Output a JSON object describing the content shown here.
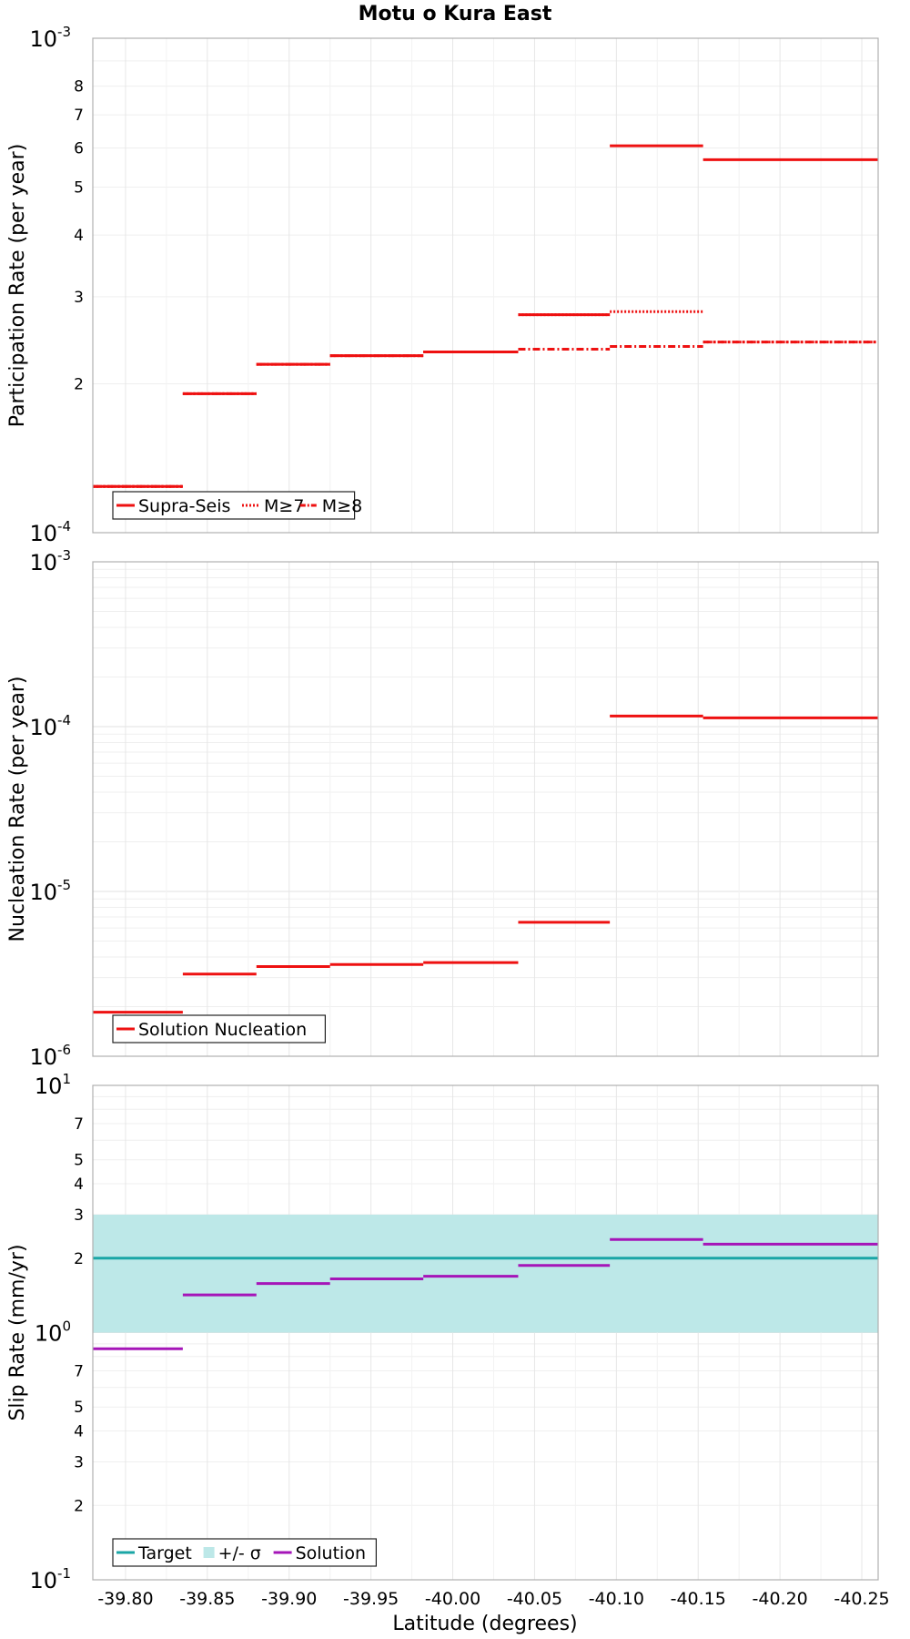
{
  "title": "Motu o Kura East",
  "xlabel": "Latitude (degrees)",
  "x_ticks": [
    "-39.80",
    "-39.85",
    "-39.90",
    "-39.95",
    "-40.00",
    "-40.05",
    "-40.10",
    "-40.15",
    "-40.20",
    "-40.25"
  ],
  "colors": {
    "red": "#ee1111",
    "teal": "#1aa6a6",
    "teal_band": "#bde8e8",
    "purple": "#a515b8"
  },
  "chart_data": [
    {
      "type": "line",
      "step": true,
      "ylabel": "Participation Rate (per year)",
      "yscale": "log",
      "ylim": [
        0.0001,
        0.001
      ],
      "xlim": [
        -39.78,
        -40.26
      ],
      "y_ticks": [
        {
          "value": 0.001,
          "mant": "10",
          "exp": "-3"
        },
        {
          "value": 0.0008,
          "mant": "8"
        },
        {
          "value": 0.0007,
          "mant": "7"
        },
        {
          "value": 0.0006,
          "mant": "6"
        },
        {
          "value": 0.0005,
          "mant": "5"
        },
        {
          "value": 0.0004,
          "mant": "4"
        },
        {
          "value": 0.0003,
          "mant": "3"
        },
        {
          "value": 0.0002,
          "mant": "2"
        },
        {
          "value": 0.0001,
          "mant": "10",
          "exp": "-4"
        }
      ],
      "legend": {
        "placement": "bottom-left",
        "entries": [
          {
            "label": "Supra-Seis",
            "style": "solid"
          },
          {
            "label": "M≥7",
            "style": "dotted"
          },
          {
            "label": "M≥8",
            "style": "dashdot"
          }
        ]
      },
      "series": [
        {
          "name": "Supra-Seis",
          "style": "solid",
          "color": "red",
          "segments": [
            [
              -39.78,
              -39.835,
              0.000124
            ],
            [
              -39.835,
              -39.88,
              0.000191
            ],
            [
              -39.88,
              -39.925,
              0.000219
            ],
            [
              -39.925,
              -39.982,
              0.000228
            ],
            [
              -39.982,
              -40.04,
              0.000232
            ],
            [
              -40.04,
              -40.096,
              0.000276
            ],
            [
              -40.096,
              -40.153,
              0.000606
            ],
            [
              -40.153,
              -40.26,
              0.000568
            ]
          ]
        },
        {
          "name": "M≥7",
          "style": "dotted",
          "color": "red",
          "segments": [
            [
              -39.78,
              -39.835,
              0.000124
            ],
            [
              -39.835,
              -39.88,
              0.000191
            ],
            [
              -39.88,
              -39.925,
              0.000219
            ],
            [
              -39.925,
              -39.982,
              0.000228
            ],
            [
              -39.982,
              -40.04,
              0.000232
            ],
            [
              -40.04,
              -40.096,
              0.000276
            ],
            [
              -40.096,
              -40.153,
              0.00028
            ],
            [
              -40.153,
              -40.26,
              0.000243
            ]
          ]
        },
        {
          "name": "M≥8",
          "style": "dashdot",
          "color": "red",
          "segments": [
            [
              -39.78,
              -39.835,
              0.000124
            ],
            [
              -39.835,
              -39.88,
              0.000191
            ],
            [
              -39.88,
              -39.925,
              0.000219
            ],
            [
              -39.925,
              -39.982,
              0.000228
            ],
            [
              -39.982,
              -40.04,
              0.000232
            ],
            [
              -40.04,
              -40.096,
              0.000235
            ],
            [
              -40.096,
              -40.153,
              0.000238
            ],
            [
              -40.153,
              -40.26,
              0.000243
            ]
          ]
        }
      ]
    },
    {
      "type": "line",
      "step": true,
      "ylabel": "Nucleation Rate (per year)",
      "yscale": "log",
      "ylim": [
        1e-06,
        0.001
      ],
      "xlim": [
        -39.78,
        -40.26
      ],
      "y_ticks": [
        {
          "value": 0.001,
          "mant": "10",
          "exp": "-3"
        },
        {
          "value": 0.0001,
          "mant": "10",
          "exp": "-4"
        },
        {
          "value": 1e-05,
          "mant": "10",
          "exp": "-5"
        },
        {
          "value": 1e-06,
          "mant": "10",
          "exp": "-6"
        }
      ],
      "legend": {
        "placement": "bottom-left",
        "entries": [
          {
            "label": "Solution Nucleation",
            "style": "solid"
          }
        ]
      },
      "series": [
        {
          "name": "Solution Nucleation",
          "style": "solid",
          "color": "red",
          "segments": [
            [
              -39.78,
              -39.835,
              1.85e-06
            ],
            [
              -39.835,
              -39.88,
              3.15e-06
            ],
            [
              -39.88,
              -39.925,
              3.5e-06
            ],
            [
              -39.925,
              -39.982,
              3.6e-06
            ],
            [
              -39.982,
              -40.04,
              3.7e-06
            ],
            [
              -40.04,
              -40.096,
              6.5e-06
            ],
            [
              -40.096,
              -40.153,
              0.000116
            ],
            [
              -40.153,
              -40.26,
              0.000113
            ]
          ]
        }
      ]
    },
    {
      "type": "line",
      "step": true,
      "ylabel": "Slip Rate (mm/yr)",
      "yscale": "log",
      "ylim": [
        0.1,
        10
      ],
      "xlim": [
        -39.78,
        -40.26
      ],
      "y_ticks": [
        {
          "value": 10,
          "mant": "10",
          "exp": "1"
        },
        {
          "value": 7,
          "mant": "7"
        },
        {
          "value": 5,
          "mant": "5"
        },
        {
          "value": 4,
          "mant": "4"
        },
        {
          "value": 3,
          "mant": "3"
        },
        {
          "value": 2,
          "mant": "2"
        },
        {
          "value": 1,
          "mant": "10",
          "exp": "0"
        },
        {
          "value": 0.7,
          "mant": "7"
        },
        {
          "value": 0.5,
          "mant": "5"
        },
        {
          "value": 0.4,
          "mant": "4"
        },
        {
          "value": 0.3,
          "mant": "3"
        },
        {
          "value": 0.2,
          "mant": "2"
        },
        {
          "value": 0.1,
          "mant": "10",
          "exp": "-1"
        }
      ],
      "legend": {
        "placement": "bottom-left",
        "entries": [
          {
            "label": "Target",
            "style": "solid-teal"
          },
          {
            "label": "+/- σ",
            "style": "band"
          },
          {
            "label": "Solution",
            "style": "solid-purple"
          }
        ]
      },
      "band": {
        "name": "+/- σ",
        "color": "teal_band",
        "lower": 1.0,
        "upper": 3.0
      },
      "series": [
        {
          "name": "Target",
          "style": "solid",
          "color": "teal",
          "segments": [
            [
              -39.78,
              -40.26,
              2.0
            ]
          ]
        },
        {
          "name": "Solution",
          "style": "solid",
          "color": "purple",
          "segments": [
            [
              -39.78,
              -39.835,
              0.86
            ],
            [
              -39.835,
              -39.88,
              1.42
            ],
            [
              -39.88,
              -39.925,
              1.58
            ],
            [
              -39.925,
              -39.982,
              1.65
            ],
            [
              -39.982,
              -40.04,
              1.69
            ],
            [
              -40.04,
              -40.096,
              1.87
            ],
            [
              -40.096,
              -40.153,
              2.38
            ],
            [
              -40.153,
              -40.26,
              2.28
            ]
          ]
        }
      ]
    }
  ]
}
